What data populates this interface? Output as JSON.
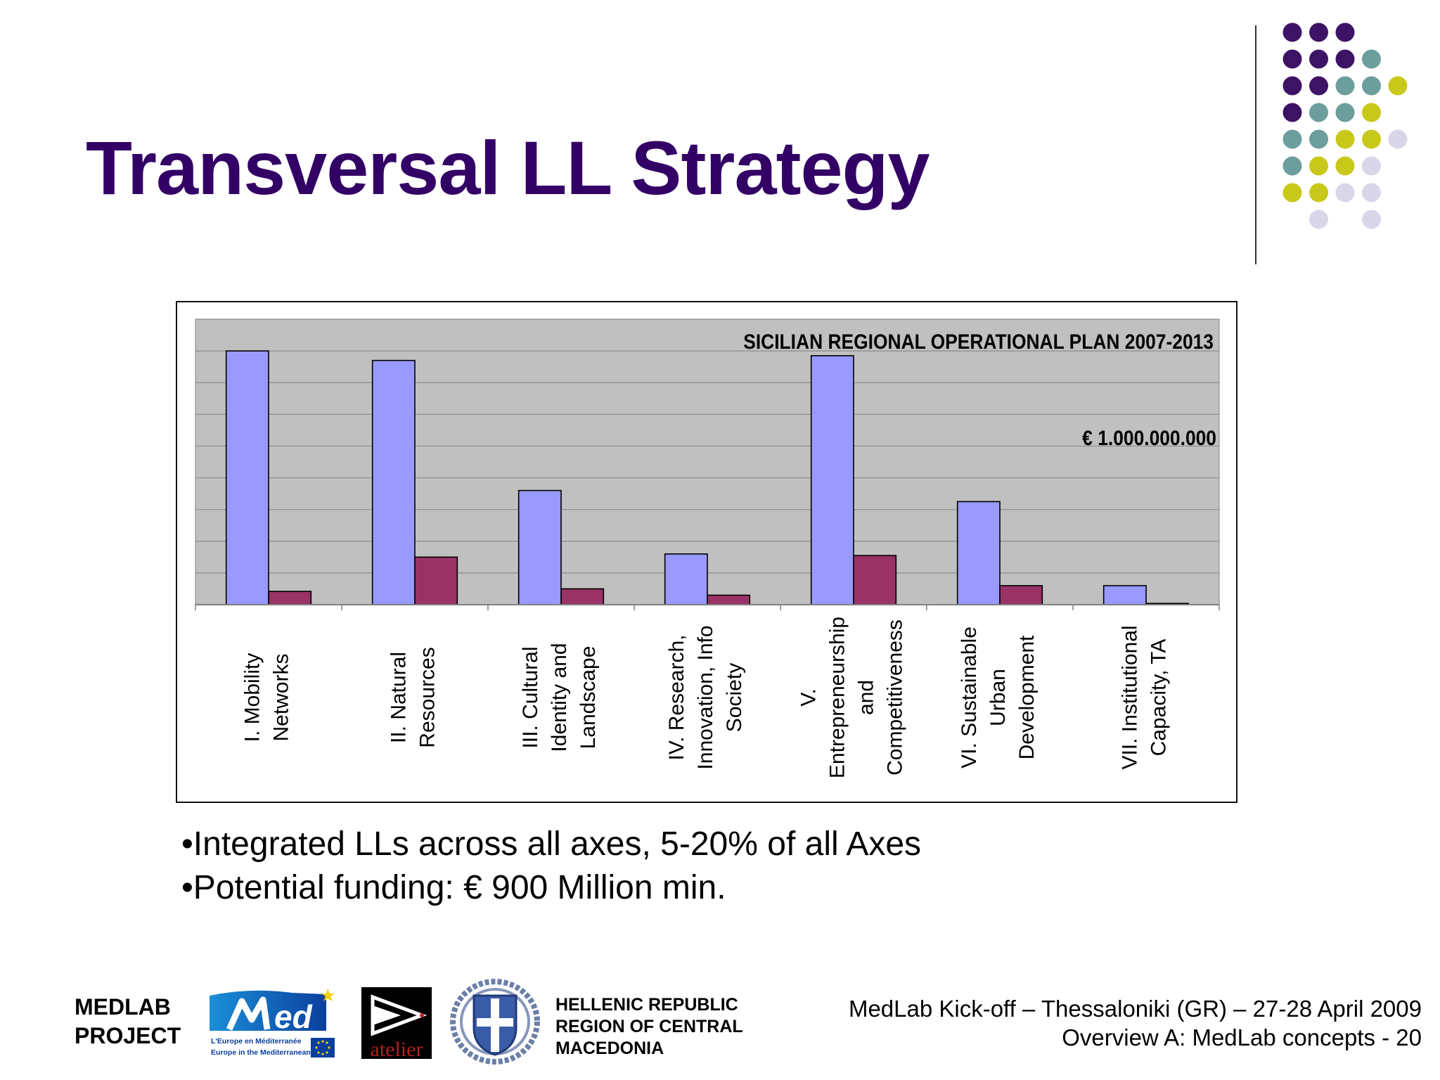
{
  "slide": {
    "title": "Transversal LL Strategy",
    "bullets": [
      "•Integrated LLs across all axes, 5-20% of all Axes",
      "•Potential funding: € 900 Million min."
    ]
  },
  "chart_data": {
    "type": "bar",
    "title": "SICILIAN REGIONAL OPERATIONAL PLAN 2007-2013",
    "annotation": "€ 1.000.000.000",
    "categories": [
      [
        "I. Mobility",
        "Networks"
      ],
      [
        "II. Natural",
        "Resources"
      ],
      [
        "III. Cultural",
        "Identity and",
        "Landscape"
      ],
      [
        "IV. Research,",
        "Innovation, Info",
        "Society"
      ],
      [
        "V.",
        "Entrepreneurship",
        "and",
        "Competitiveness"
      ],
      [
        "VI. Sustainable",
        "Urban",
        "Development"
      ],
      [
        "VII. Institutional",
        "Capacity, TA"
      ]
    ],
    "series": [
      {
        "values": [
          8.0,
          7.7,
          3.6,
          1.6,
          7.85,
          3.25,
          0.6
        ],
        "color": "#9999ff"
      },
      {
        "values": [
          0.42,
          1.5,
          0.5,
          0.3,
          1.55,
          0.6,
          0.04
        ],
        "color": "#993366"
      }
    ],
    "ylim": [
      0,
      9
    ],
    "grid": true,
    "plot_background": "#c0c0c0"
  },
  "footer": {
    "project_line1": "MEDLAB",
    "project_line2": "PROJECT",
    "med_logo_caption_1": "L'Europe en Méditerranée",
    "med_logo_caption_2": "Europe in the Mediterranean",
    "atelier_logo_text": "atelier",
    "region_line1": "HELLENIC REPUBLIC",
    "region_line2": "REGION OF CENTRAL",
    "region_line3": "MACEDONIA",
    "event_line": "MedLab Kick-off – Thessaloniki (GR) – 27-28 April 2009",
    "page_line": "Overview A: MedLab concepts - 20"
  },
  "colors": {
    "title": "#330066",
    "dot_purple": "#3d1366",
    "dot_teal": "#6b9e9c",
    "dot_yellow": "#c8c81a",
    "dot_lavender": "#d9d6ea"
  }
}
